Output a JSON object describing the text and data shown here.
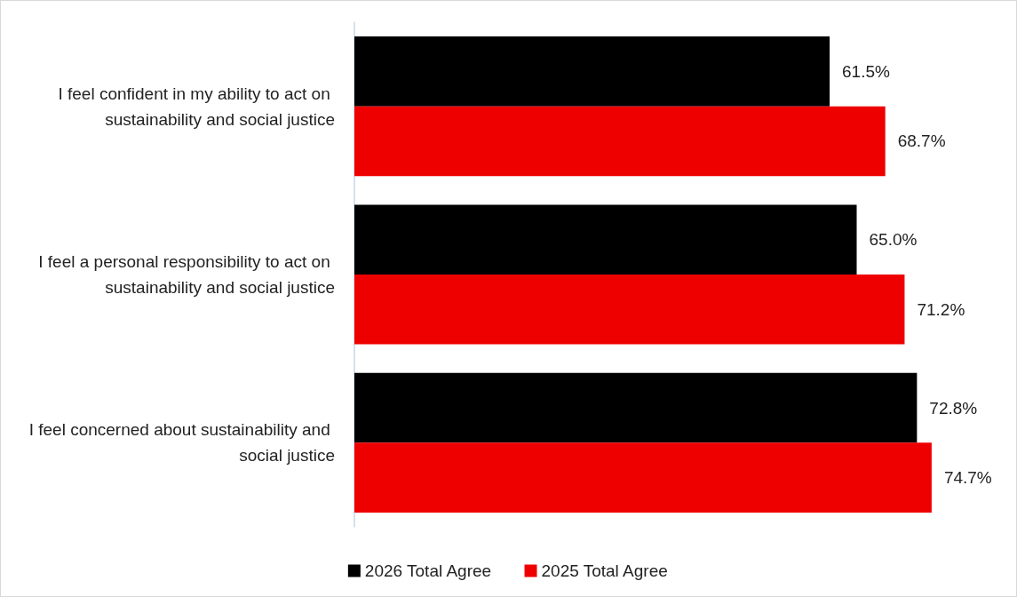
{
  "chart_data": {
    "type": "bar",
    "orientation": "horizontal",
    "categories": [
      "I feel confident in my ability to act on sustainability and social justice",
      "I feel a personal responsibility to act on sustainability and social justice",
      "I feel concerned about sustainability and social justice"
    ],
    "series": [
      {
        "name": "2026 Total Agree",
        "color": "#000000",
        "values": [
          61.5,
          65.0,
          72.8
        ],
        "value_labels": [
          "61.5%",
          "65.0%",
          "72.8%"
        ]
      },
      {
        "name": "2025 Total Agree",
        "color": "#ee0000",
        "values": [
          68.7,
          71.2,
          74.7
        ],
        "value_labels": [
          "68.7%",
          "71.2%",
          "74.7%"
        ]
      }
    ],
    "tick_labels": "y",
    "grid": false,
    "legend": "bottom"
  }
}
